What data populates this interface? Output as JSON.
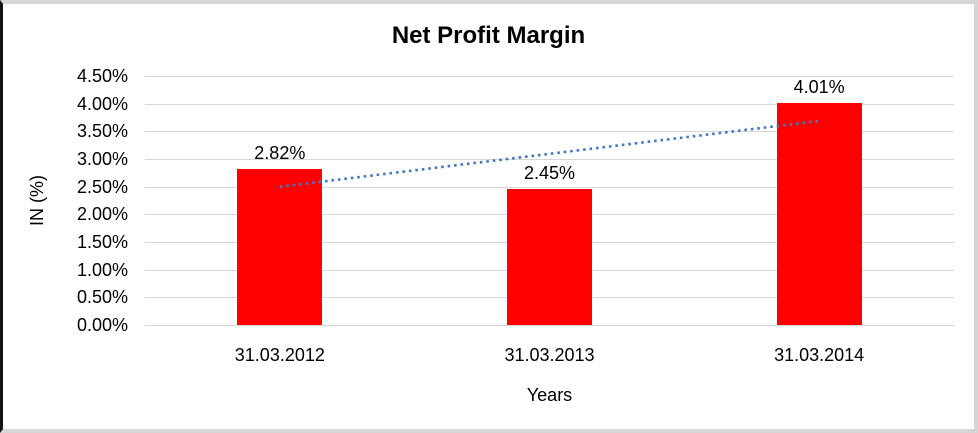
{
  "chart_data": {
    "type": "bar",
    "title": "Net Profit Margin",
    "categories": [
      "31.03.2012",
      "31.03.2013",
      "31.03.2014"
    ],
    "values": [
      2.82,
      2.45,
      4.01
    ],
    "data_labels": [
      "2.82%",
      "2.45%",
      "4.01%"
    ],
    "xlabel": "Years",
    "ylabel": "IN (%)",
    "ylim": [
      0,
      4.5
    ],
    "ytick_step": 0.5,
    "ytick_labels": [
      "0.00%",
      "0.50%",
      "1.00%",
      "1.50%",
      "2.00%",
      "2.50%",
      "3.00%",
      "3.50%",
      "4.00%",
      "4.50%"
    ],
    "grid": true,
    "legend": "none",
    "bar_color": "#FF0000",
    "gridline_color": "#D6D6D6",
    "text_color": "#000000",
    "trendline": {
      "type": "linear",
      "style": "dotted",
      "color": "#4577BE"
    }
  }
}
